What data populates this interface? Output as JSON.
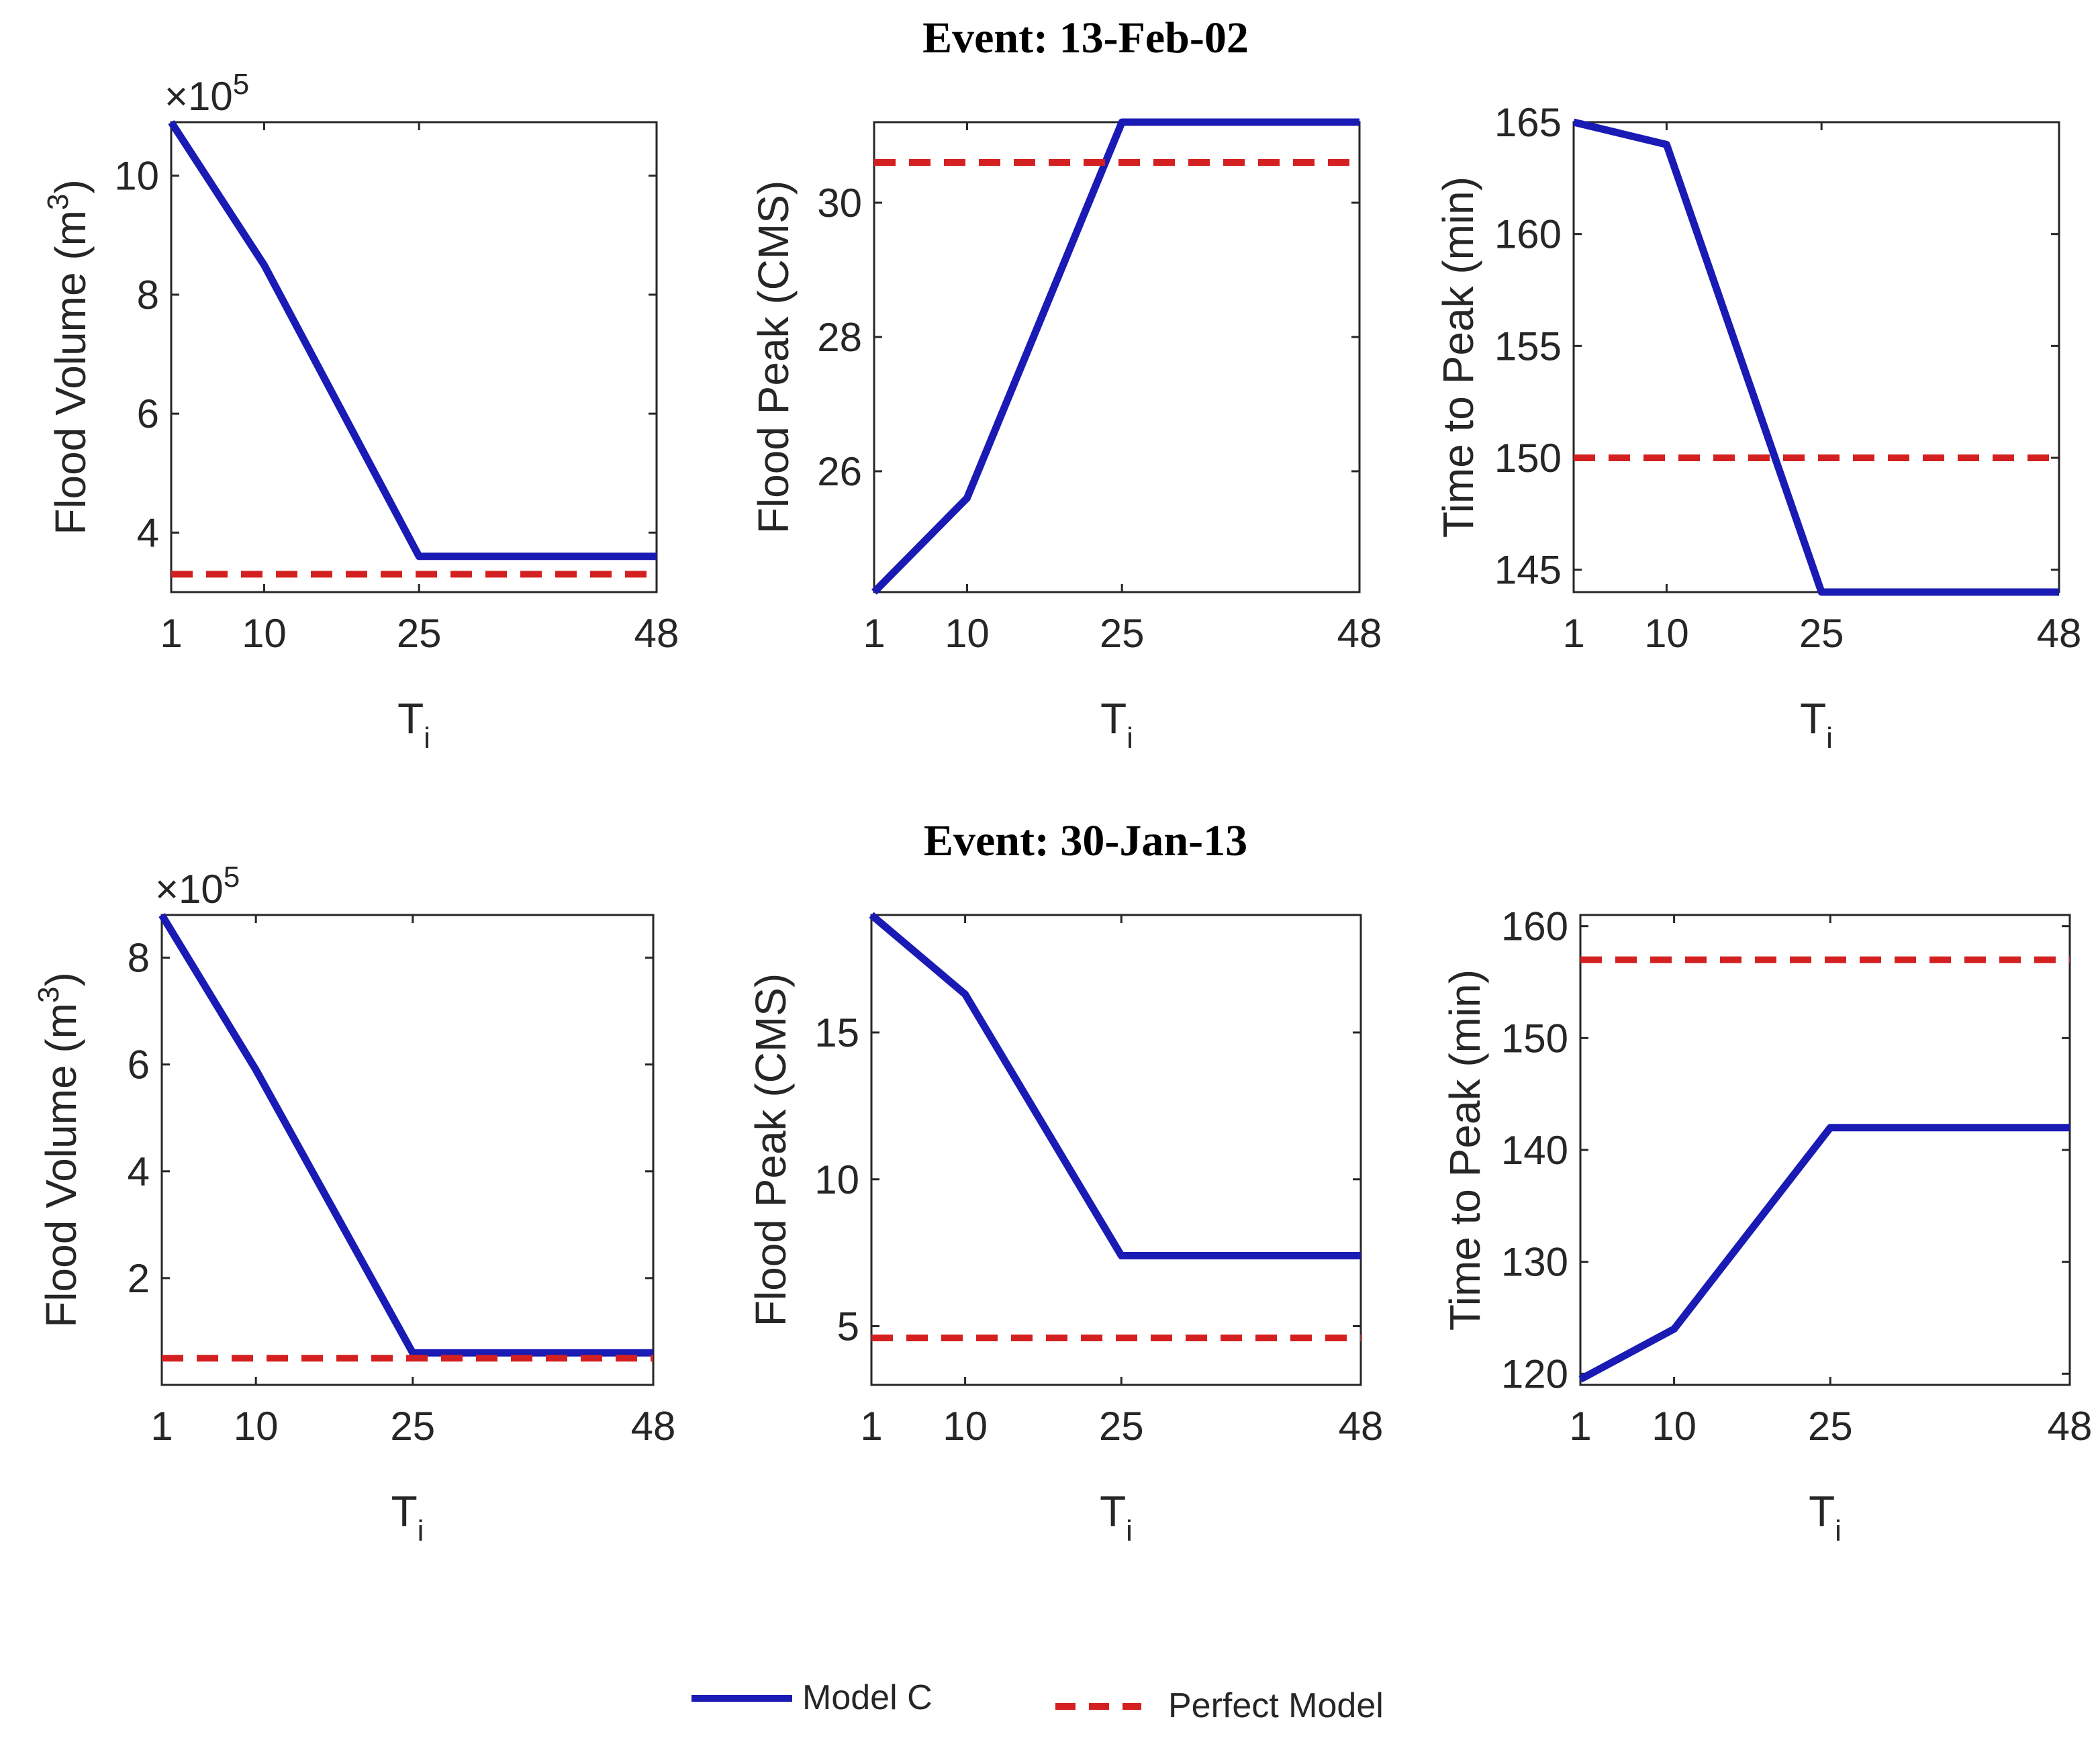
{
  "colors": {
    "model": "#1a1ab4",
    "perfect": "#d42020",
    "axis": "#262626"
  },
  "events": [
    {
      "title": "Event: 13-Feb-02"
    },
    {
      "title": "Event: 30-Jan-13"
    }
  ],
  "legend": {
    "model_label": "Model C",
    "perfect_label": "Perfect Model"
  },
  "chart_data": [
    {
      "type": "line",
      "event": "Event: 13-Feb-02",
      "panel": "Flood Volume",
      "xlabel": "T",
      "xlabel_sub": "i",
      "ylabel": "Flood Volume (m",
      "ylabel_sup": "3",
      "ylabel_end": ")",
      "multiplier": "×10",
      "multiplier_exp": "5",
      "x": [
        1,
        10,
        25,
        48
      ],
      "xlim": [
        1,
        48
      ],
      "x_ticks": [
        1,
        10,
        25,
        48
      ],
      "x_tick_labels": [
        "1",
        "10",
        "25",
        "48"
      ],
      "ylim": [
        3.0,
        10.9
      ],
      "y_ticks": [
        4,
        6,
        8,
        10
      ],
      "y_tick_labels": [
        "4",
        "6",
        "8",
        "10"
      ],
      "series": [
        {
          "name": "Model C",
          "values": [
            10.9,
            8.5,
            3.6,
            3.6
          ]
        },
        {
          "name": "Perfect Model",
          "values": [
            3.3,
            3.3,
            3.3,
            3.3
          ]
        }
      ]
    },
    {
      "type": "line",
      "event": "Event: 13-Feb-02",
      "panel": "Flood Peak",
      "xlabel": "T",
      "xlabel_sub": "i",
      "ylabel": "Flood Peak (CMS)",
      "ylabel_sup": "",
      "ylabel_end": "",
      "multiplier": "",
      "multiplier_exp": "",
      "x": [
        1,
        10,
        25,
        48
      ],
      "xlim": [
        1,
        48
      ],
      "x_ticks": [
        1,
        10,
        25,
        48
      ],
      "x_tick_labels": [
        "1",
        "10",
        "25",
        "48"
      ],
      "ylim": [
        24.2,
        31.2
      ],
      "y_ticks": [
        26,
        28,
        30
      ],
      "y_tick_labels": [
        "26",
        "28",
        "30"
      ],
      "series": [
        {
          "name": "Model C",
          "values": [
            24.2,
            25.6,
            31.2,
            31.2
          ]
        },
        {
          "name": "Perfect Model",
          "values": [
            30.6,
            30.6,
            30.6,
            30.6
          ]
        }
      ]
    },
    {
      "type": "line",
      "event": "Event: 13-Feb-02",
      "panel": "Time to Peak",
      "xlabel": "T",
      "xlabel_sub": "i",
      "ylabel": "Time to Peak (min)",
      "ylabel_sup": "",
      "ylabel_end": "",
      "multiplier": "",
      "multiplier_exp": "",
      "x": [
        1,
        10,
        25,
        48
      ],
      "xlim": [
        1,
        48
      ],
      "x_ticks": [
        1,
        10,
        25,
        48
      ],
      "x_tick_labels": [
        "1",
        "10",
        "25",
        "48"
      ],
      "ylim": [
        144,
        165
      ],
      "y_ticks": [
        145,
        150,
        155,
        160,
        165
      ],
      "y_tick_labels": [
        "145",
        "150",
        "155",
        "160",
        "165"
      ],
      "series": [
        {
          "name": "Model C",
          "values": [
            165,
            164,
            144,
            144
          ]
        },
        {
          "name": "Perfect Model",
          "values": [
            150,
            150,
            150,
            150
          ]
        }
      ]
    },
    {
      "type": "line",
      "event": "Event: 30-Jan-13",
      "panel": "Flood Volume",
      "xlabel": "T",
      "xlabel_sub": "i",
      "ylabel": "Flood Volume (m",
      "ylabel_sup": "3",
      "ylabel_end": ")",
      "multiplier": "×10",
      "multiplier_exp": "5",
      "x": [
        1,
        10,
        25,
        48
      ],
      "xlim": [
        1,
        48
      ],
      "x_ticks": [
        1,
        10,
        25,
        48
      ],
      "x_tick_labels": [
        "1",
        "10",
        "25",
        "48"
      ],
      "ylim": [
        0.0,
        8.8
      ],
      "y_ticks": [
        2,
        4,
        6,
        8
      ],
      "y_tick_labels": [
        "2",
        "4",
        "6",
        "8"
      ],
      "series": [
        {
          "name": "Model C",
          "values": [
            8.8,
            5.9,
            0.6,
            0.6
          ]
        },
        {
          "name": "Perfect Model",
          "values": [
            0.5,
            0.5,
            0.5,
            0.5
          ]
        }
      ]
    },
    {
      "type": "line",
      "event": "Event: 30-Jan-13",
      "panel": "Flood Peak",
      "xlabel": "T",
      "xlabel_sub": "i",
      "ylabel": "Flood Peak (CMS)",
      "ylabel_sup": "",
      "ylabel_end": "",
      "multiplier": "",
      "multiplier_exp": "",
      "x": [
        1,
        10,
        25,
        48
      ],
      "xlim": [
        1,
        48
      ],
      "x_ticks": [
        1,
        10,
        25,
        48
      ],
      "x_tick_labels": [
        "1",
        "10",
        "25",
        "48"
      ],
      "ylim": [
        3.0,
        19.0
      ],
      "y_ticks": [
        5,
        10,
        15
      ],
      "y_tick_labels": [
        "5",
        "10",
        "15"
      ],
      "series": [
        {
          "name": "Model C",
          "values": [
            19.0,
            16.3,
            7.4,
            7.4
          ]
        },
        {
          "name": "Perfect Model",
          "values": [
            4.6,
            4.6,
            4.6,
            4.6
          ]
        }
      ]
    },
    {
      "type": "line",
      "event": "Event: 30-Jan-13",
      "panel": "Time to Peak",
      "xlabel": "T",
      "xlabel_sub": "i",
      "ylabel": "Time to Peak (min)",
      "ylabel_sup": "",
      "ylabel_end": "",
      "multiplier": "",
      "multiplier_exp": "",
      "x": [
        1,
        10,
        25,
        48
      ],
      "xlim": [
        1,
        48
      ],
      "x_ticks": [
        1,
        10,
        25,
        48
      ],
      "x_tick_labels": [
        "1",
        "10",
        "25",
        "48"
      ],
      "ylim": [
        119,
        161
      ],
      "y_ticks": [
        120,
        130,
        140,
        150,
        160
      ],
      "y_tick_labels": [
        "120",
        "130",
        "140",
        "150",
        "160"
      ],
      "series": [
        {
          "name": "Model C",
          "values": [
            119.5,
            124,
            142,
            142
          ]
        },
        {
          "name": "Perfect Model",
          "values": [
            157,
            157,
            157,
            157
          ]
        }
      ]
    }
  ]
}
